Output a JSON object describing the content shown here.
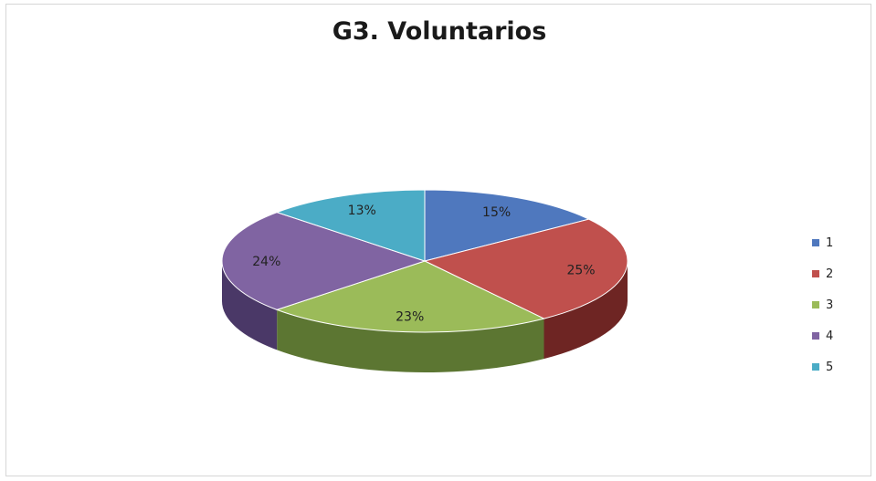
{
  "chart_data": {
    "type": "pie",
    "title": "G3. Voluntarios",
    "categories": [
      "1",
      "2",
      "3",
      "4",
      "5"
    ],
    "values": [
      15,
      25,
      23,
      24,
      13
    ],
    "value_labels": [
      "15%",
      "25%",
      "23%",
      "24%",
      "13%"
    ],
    "colors": [
      "#4F78BE",
      "#C0504D",
      "#9BBB59",
      "#8064A2",
      "#4BACC6"
    ],
    "dark_colors": [
      "#2E4A7C",
      "#6E2523",
      "#5C7632",
      "#4A3867",
      "#2A6E83"
    ],
    "legend_position": "right",
    "style": "3d"
  }
}
